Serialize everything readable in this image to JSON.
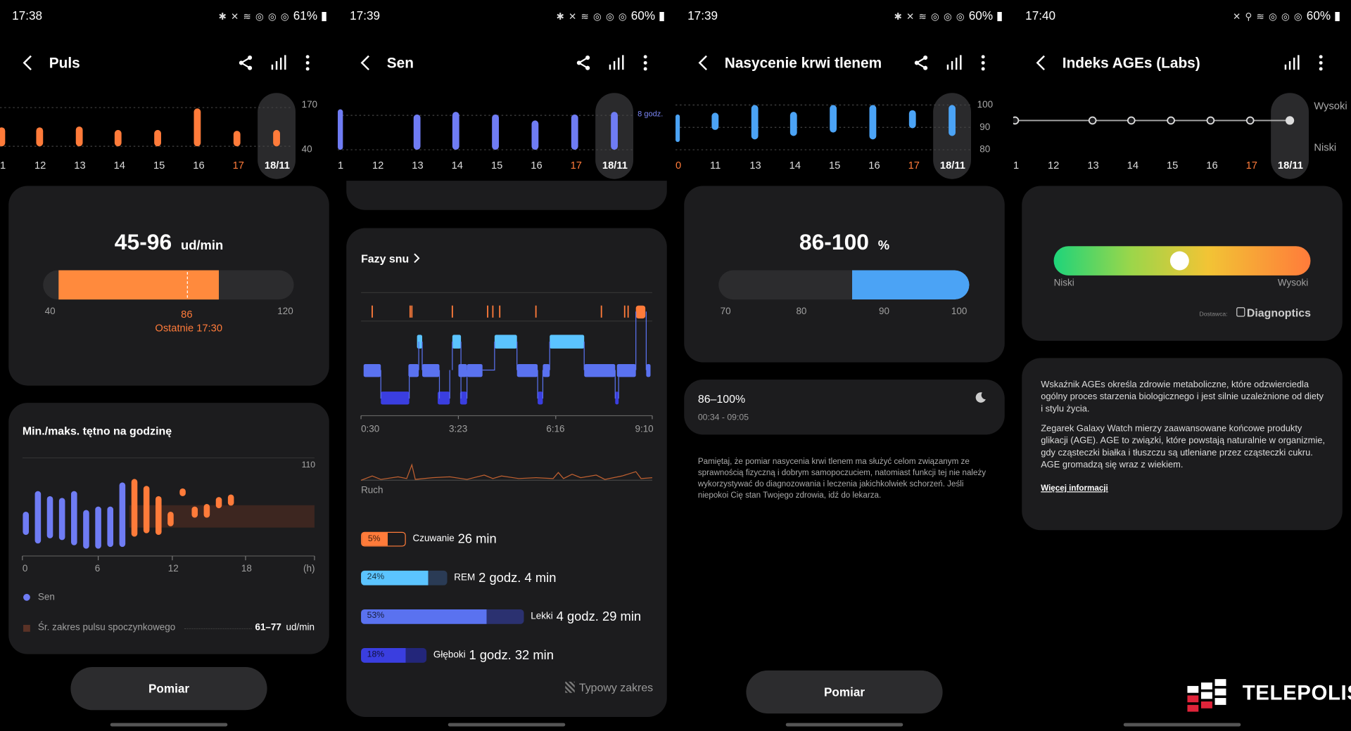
{
  "screens": [
    {
      "status": {
        "time": "17:38",
        "icons": "✱ ✕ ≋ ◎ ◎ ◎",
        "battery": "61%"
      },
      "title": "Puls",
      "strip": {
        "labels": [
          "1",
          "12",
          "13",
          "14",
          "15",
          "16",
          "17",
          "18/11"
        ],
        "scale": [
          "170",
          "40"
        ]
      },
      "range_card": {
        "value": "45-96",
        "unit": "ud/min",
        "min": "40",
        "max": "120",
        "marker": "86",
        "last": "Ostatnie 17:30"
      },
      "hourly": {
        "title": "Min./maks. tętno na godzinę",
        "top": "110",
        "ticks": [
          "0",
          "6",
          "12",
          "18",
          "(h)"
        ],
        "legend_sleep": "Sen",
        "legend_rest": "Śr. zakres pulsu spoczynkowego",
        "rest_value": "61–77",
        "rest_unit": "ud/min"
      },
      "button": "Pomiar"
    },
    {
      "status": {
        "time": "17:39",
        "icons": "✱ ✕ ≋ ◎ ◎ ◎",
        "battery": "60%"
      },
      "title": "Sen",
      "strip": {
        "labels": [
          "1",
          "12",
          "13",
          "14",
          "15",
          "16",
          "17",
          "18/11"
        ],
        "scale": [
          "8 godz."
        ]
      },
      "phases_card": {
        "title": "Fazy snu",
        "times": [
          "0:30",
          "3:23",
          "6:16",
          "9:10"
        ],
        "movement": "Ruch",
        "rows": [
          {
            "pct": "5%",
            "name": "Czuwanie",
            "value": "26 min",
            "color": "#ff7b3a"
          },
          {
            "pct": "24%",
            "name": "REM",
            "value": "2 godz. 4 min",
            "color": "#5bc4ff"
          },
          {
            "pct": "53%",
            "name": "Lekki",
            "value": "4 godz. 29 min",
            "color": "#5a72f0"
          },
          {
            "pct": "18%",
            "name": "Głęboki",
            "value": "1 godz. 32 min",
            "color": "#3a3ee0"
          }
        ],
        "typical": "Typowy zakres"
      }
    },
    {
      "status": {
        "time": "17:39",
        "icons": "✱ ✕ ≋ ◎ ◎ ◎",
        "battery": "60%"
      },
      "title": "Nasycenie krwi tlenem",
      "strip": {
        "labels": [
          "0",
          "11",
          "13",
          "14",
          "15",
          "16",
          "17",
          "18/11"
        ],
        "scale": [
          "100",
          "90",
          "80"
        ]
      },
      "range_card": {
        "value": "86-100",
        "unit": "%",
        "ticks": [
          "70",
          "80",
          "90",
          "100"
        ]
      },
      "session": {
        "range": "86–100%",
        "time": "00:34 - 09:05"
      },
      "disclaimer": "Pamiętaj, że pomiar nasycenia krwi tlenem ma służyć celom związanym ze sprawnością fizyczną i dobrym samopoczuciem, natomiast funkcji tej nie należy wykorzystywać do diagnozowania i leczenia jakichkolwiek schorzeń. Jeśli niepokoi Cię stan Twojego zdrowia, idź do lekarza.",
      "button": "Pomiar"
    },
    {
      "status": {
        "time": "17:40",
        "icons": "✕ ⚲ ≋ ◎ ◎ ◎",
        "battery": "60%"
      },
      "title": "Indeks AGEs (Labs)",
      "strip": {
        "labels": [
          "1",
          "12",
          "13",
          "14",
          "15",
          "16",
          "17",
          "18/11"
        ],
        "scale": [
          "Wysoki",
          "Niski"
        ]
      },
      "gauge": {
        "low": "Niski",
        "high": "Wysoki",
        "provider_label": "Dostawca:",
        "provider": "Diagnoptics",
        "level": 0.49
      },
      "info": {
        "p1": "Wskaźnik AGEs określa zdrowie metaboliczne, które odzwierciedla ogólny proces starzenia biologicznego i jest silnie uzależnione od diety i stylu życia.",
        "p2": "Zegarek Galaxy Watch mierzy zaawansowane końcowe produkty glikacji (AGE). AGE to związki, które powstają naturalnie w organizmie, gdy cząsteczki białka i tłuszczu są utleniane przez cząsteczki cukru. AGE gromadzą się wraz z wiekiem.",
        "link": "Więcej informacji"
      },
      "watermark": "TELEPOLIS"
    }
  ]
}
